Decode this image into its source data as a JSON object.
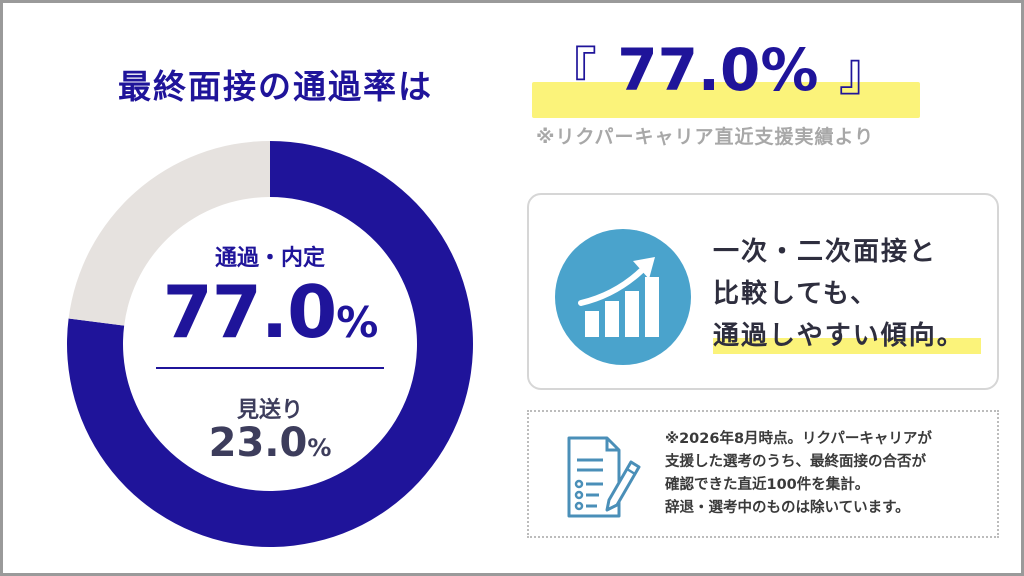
{
  "header": {
    "title": "最終面接の通過率は",
    "value_open": "『",
    "value": "77.0%",
    "value_close": "』",
    "source": "※リクパーキャリア直近支援実績より"
  },
  "chart_data": {
    "type": "pie",
    "slices": [
      {
        "label": "通過・内定",
        "value": 77.0,
        "color": "#1f149a"
      },
      {
        "label": "見送り",
        "value": 23.0,
        "color": "#e6e2df"
      }
    ],
    "center": {
      "pass_label": "通過・内定",
      "pass_number": "77.0",
      "pass_unit": "%",
      "reject_label": "見送り",
      "reject_number": "23.0",
      "reject_unit": "%"
    }
  },
  "card": {
    "lines": [
      "一次・二次面接と",
      "比較しても、",
      "通過しやすい傾向。"
    ],
    "icon": "growth-chart-icon",
    "icon_color": "#4aa3cc"
  },
  "note": {
    "icon": "document-pen-icon",
    "lines": [
      "※2026年8月時点。リクパーキャリアが",
      "支援した選考のうち、最終面接の合否が",
      "確認できた直近100件を集計。",
      "辞退・選考中のものは除いています。"
    ]
  },
  "colors": {
    "primary": "#1f149a",
    "highlight": "#fbf37a",
    "muted": "#a8a8a8"
  }
}
